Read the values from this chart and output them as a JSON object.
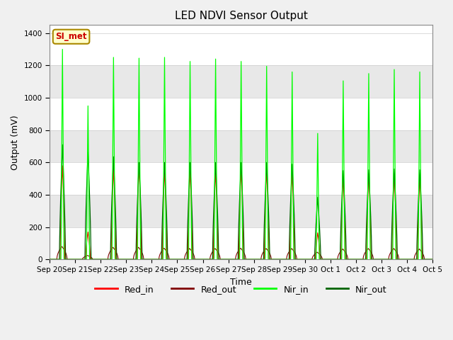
{
  "title": "LED NDVI Sensor Output",
  "xlabel": "Time",
  "ylabel": "Output (mV)",
  "ylim": [
    0,
    1450
  ],
  "yticks": [
    0,
    200,
    400,
    600,
    800,
    1000,
    1200,
    1400
  ],
  "x_labels": [
    "Sep 20",
    "Sep 21",
    "Sep 22",
    "Sep 23",
    "Sep 24",
    "Sep 25",
    "Sep 26",
    "Sep 27",
    "Sep 28",
    "Sep 29",
    "Sep 30",
    "Oct 1",
    "Oct 2",
    "Oct 3",
    "Oct 4",
    "Oct 5"
  ],
  "colors": {
    "Red_in": "#ff0000",
    "Red_out": "#800000",
    "Nir_in": "#00ff00",
    "Nir_out": "#006400"
  },
  "annotation_text": "SI_met",
  "annotation_bg": "#ffffcc",
  "annotation_border": "#aa8800",
  "annotation_text_color": "#cc0000",
  "bg_stripe_light": "#ffffff",
  "bg_stripe_dark": "#e8e8e8",
  "num_cycles": 15,
  "nir_in_peaks": [
    1300,
    950,
    1250,
    1245,
    1250,
    1225,
    1240,
    1225,
    1195,
    1160,
    780,
    1105,
    1150,
    1175,
    1160
  ],
  "nir_out_peaks": [
    710,
    665,
    635,
    600,
    600,
    600,
    600,
    600,
    600,
    590,
    385,
    550,
    555,
    560,
    555
  ],
  "red_in_peaks": [
    580,
    170,
    560,
    575,
    550,
    545,
    545,
    555,
    555,
    535,
    165,
    510,
    530,
    525,
    510
  ],
  "red_out_peaks": [
    80,
    25,
    75,
    75,
    70,
    68,
    68,
    70,
    68,
    68,
    45,
    65,
    68,
    68,
    65
  ]
}
